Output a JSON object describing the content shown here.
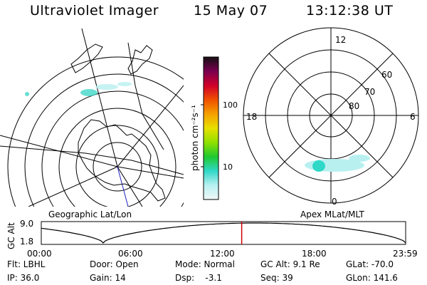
{
  "header": {
    "instrument": "Ultraviolet Imager",
    "date": "15 May 07",
    "time": "13:12:38 UT"
  },
  "colorbar": {
    "label": "photon cm⁻²s⁻¹",
    "ticks": [
      "100",
      "10"
    ],
    "colors": [
      "#141014",
      "#7a0050",
      "#d0002a",
      "#f05000",
      "#f5a000",
      "#e8e000",
      "#90e000",
      "#20c830",
      "#30d8c8",
      "#b8f0f0",
      "#f0f8f8"
    ]
  },
  "maps": {
    "left_label": "Geographic Lat/Lon",
    "right_label": "Apex MLat/MLT",
    "polar": {
      "top": "12",
      "bottom": "0",
      "left": "18",
      "right": "6",
      "lat_labels": [
        "60",
        "70",
        "80"
      ]
    }
  },
  "altitude_plot": {
    "ylabel": "GC Alt",
    "ymax": "9.0",
    "ymin": "1.8",
    "xticks": [
      "00:00",
      "06:00",
      "12:00",
      "18:00",
      "23:59"
    ],
    "current_time_fraction": 0.55,
    "marker_color": "#d00000"
  },
  "info": {
    "row1": [
      "Flt: LBHL",
      "Door: Open",
      "Mode: Normal",
      "GC Alt: 9.1 Re",
      "GLat: -70.0"
    ],
    "row2": [
      "IP: 36.0",
      "Gain: 14",
      "Dsp:    -3.1",
      "Seq: 39",
      "GLon: 141.6"
    ]
  }
}
